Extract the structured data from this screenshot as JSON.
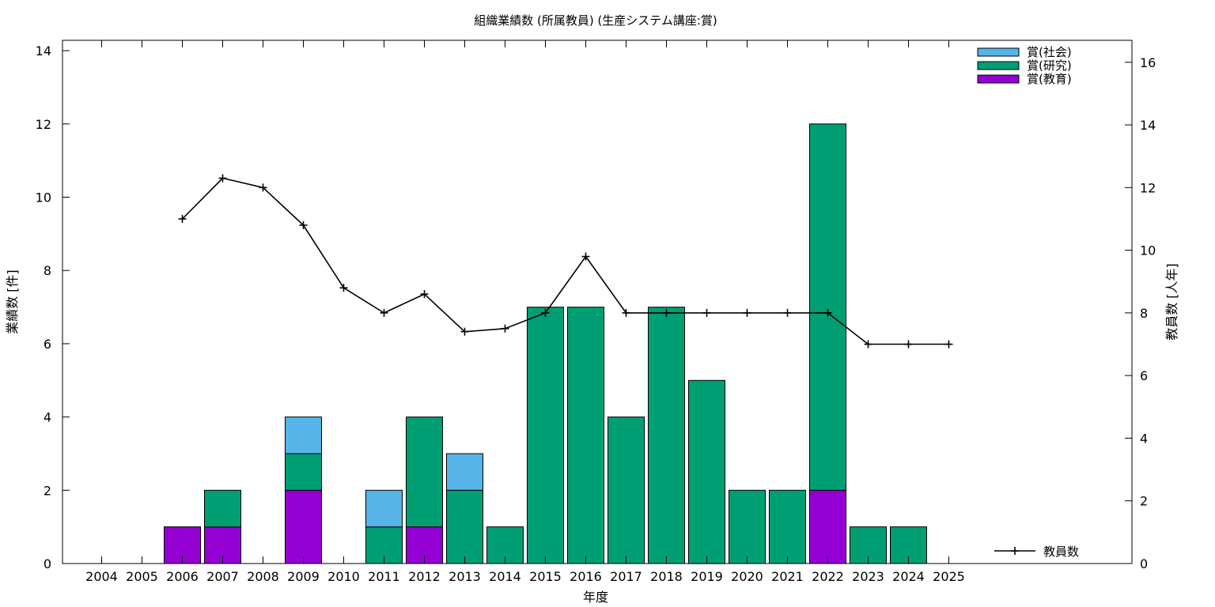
{
  "chart_data": {
    "type": "bar",
    "stacked": true,
    "title": "組織業績数 (所属教員) (生産システム講座:賞)",
    "xlabel": "年度",
    "ylabel": "業績数 [件]",
    "y2label": "教員数 [人年]",
    "categories": [
      "2004",
      "2005",
      "2006",
      "2007",
      "2008",
      "2009",
      "2010",
      "2011",
      "2012",
      "2013",
      "2014",
      "2015",
      "2016",
      "2017",
      "2018",
      "2019",
      "2020",
      "2021",
      "2022",
      "2023",
      "2024",
      "2025"
    ],
    "ylim": [
      0,
      14
    ],
    "y2lim": [
      0,
      16
    ],
    "yticks": [
      "0",
      "2",
      "4",
      "6",
      "8",
      "10",
      "12",
      "14"
    ],
    "y2ticks": [
      "0",
      "2",
      "4",
      "6",
      "8",
      "10",
      "12",
      "14",
      "16"
    ],
    "grid": false,
    "legend_position": "top-right",
    "series": [
      {
        "name": "賞(教育)",
        "color": "#9400d3",
        "values": [
          0,
          0,
          1,
          1,
          0,
          2,
          0,
          0,
          1,
          0,
          0,
          0,
          0,
          0,
          0,
          0,
          0,
          0,
          2,
          0,
          0,
          0
        ]
      },
      {
        "name": "賞(研究)",
        "color": "#009e73",
        "values": [
          0,
          0,
          0,
          1,
          0,
          1,
          0,
          1,
          3,
          2,
          1,
          7,
          7,
          4,
          7,
          5,
          2,
          2,
          10,
          1,
          1,
          0
        ]
      },
      {
        "name": "賞(社会)",
        "color": "#56b4e9",
        "values": [
          0,
          0,
          0,
          0,
          0,
          1,
          0,
          1,
          0,
          1,
          0,
          0,
          0,
          0,
          0,
          0,
          0,
          0,
          0,
          0,
          0,
          0
        ]
      }
    ],
    "line_series": {
      "name": "教員数",
      "axis": "y2",
      "color": "#000000",
      "x": [
        "2006",
        "2007",
        "2008",
        "2009",
        "2010",
        "2011",
        "2012",
        "2013",
        "2014",
        "2015",
        "2016",
        "2017",
        "2018",
        "2019",
        "2020",
        "2021",
        "2022",
        "2023",
        "2024",
        "2025"
      ],
      "values": [
        11.0,
        12.3,
        12.0,
        10.8,
        8.8,
        8.0,
        8.6,
        7.4,
        7.5,
        8.0,
        9.8,
        8.0,
        8.0,
        8.0,
        8.0,
        8.0,
        8.0,
        7.0,
        7.0,
        7.0
      ]
    }
  }
}
